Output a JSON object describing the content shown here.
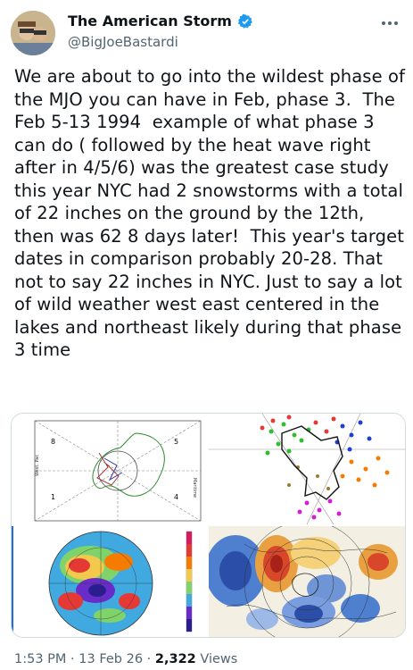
{
  "author": {
    "display_name": "The American Storm",
    "handle": "@BigJoeBastardi",
    "avatar_icon": "profile-photo",
    "verified_icon": "verified-badge-icon",
    "verified_color": "#1d9bf0"
  },
  "post": {
    "text": "We are about to go into the wildest phase of the MJO you can have in Feb, phase 3.  The Feb 5-13 1994  example of what phase 3 can do ( followed by the heat wave right after in 4/5/6) was the greatest case study this year NYC had 2 snowstorms with a total of 22 inches on the ground by the 12th, then was 62 8 days later!  This year's target dates in comparison probably 20-28. That not to say 22 inches in NYC. Just to say a lot of wild weather west east centered in the lakes and northeast likely during that phase 3 time"
  },
  "media": {
    "mjo_diagram": {
      "phase_labels": [
        "8",
        "1",
        "5",
        "4"
      ],
      "side_labels": [
        "West. Pac",
        "Maritime"
      ]
    }
  },
  "footer": {
    "time": "1:53 PM",
    "separator": "·",
    "date": "13 Feb 26",
    "views_count": "2,322",
    "views_label": "Views"
  }
}
